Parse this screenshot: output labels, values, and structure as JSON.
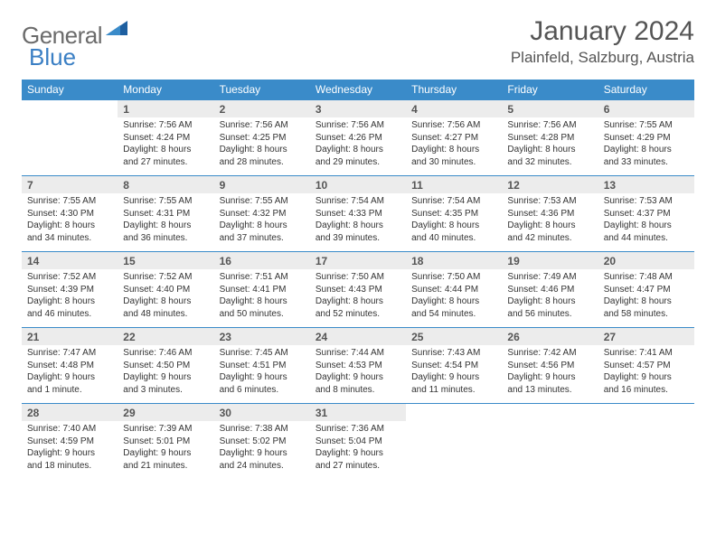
{
  "brand": {
    "general": "General",
    "blue": "Blue"
  },
  "title": "January 2024",
  "location": "Plainfeld, Salzburg, Austria",
  "colors": {
    "headerBg": "#3a8bc9",
    "dayBg": "#ececec",
    "borderTop": "#3a8bc9",
    "logoGray": "#6b6b6b",
    "logoBlue": "#3a7fc4"
  },
  "dows": [
    "Sunday",
    "Monday",
    "Tuesday",
    "Wednesday",
    "Thursday",
    "Friday",
    "Saturday"
  ],
  "weeks": [
    [
      null,
      {
        "n": "1",
        "sr": "7:56 AM",
        "ss": "4:24 PM",
        "dl": "8 hours and 27 minutes."
      },
      {
        "n": "2",
        "sr": "7:56 AM",
        "ss": "4:25 PM",
        "dl": "8 hours and 28 minutes."
      },
      {
        "n": "3",
        "sr": "7:56 AM",
        "ss": "4:26 PM",
        "dl": "8 hours and 29 minutes."
      },
      {
        "n": "4",
        "sr": "7:56 AM",
        "ss": "4:27 PM",
        "dl": "8 hours and 30 minutes."
      },
      {
        "n": "5",
        "sr": "7:56 AM",
        "ss": "4:28 PM",
        "dl": "8 hours and 32 minutes."
      },
      {
        "n": "6",
        "sr": "7:55 AM",
        "ss": "4:29 PM",
        "dl": "8 hours and 33 minutes."
      }
    ],
    [
      {
        "n": "7",
        "sr": "7:55 AM",
        "ss": "4:30 PM",
        "dl": "8 hours and 34 minutes."
      },
      {
        "n": "8",
        "sr": "7:55 AM",
        "ss": "4:31 PM",
        "dl": "8 hours and 36 minutes."
      },
      {
        "n": "9",
        "sr": "7:55 AM",
        "ss": "4:32 PM",
        "dl": "8 hours and 37 minutes."
      },
      {
        "n": "10",
        "sr": "7:54 AM",
        "ss": "4:33 PM",
        "dl": "8 hours and 39 minutes."
      },
      {
        "n": "11",
        "sr": "7:54 AM",
        "ss": "4:35 PM",
        "dl": "8 hours and 40 minutes."
      },
      {
        "n": "12",
        "sr": "7:53 AM",
        "ss": "4:36 PM",
        "dl": "8 hours and 42 minutes."
      },
      {
        "n": "13",
        "sr": "7:53 AM",
        "ss": "4:37 PM",
        "dl": "8 hours and 44 minutes."
      }
    ],
    [
      {
        "n": "14",
        "sr": "7:52 AM",
        "ss": "4:39 PM",
        "dl": "8 hours and 46 minutes."
      },
      {
        "n": "15",
        "sr": "7:52 AM",
        "ss": "4:40 PM",
        "dl": "8 hours and 48 minutes."
      },
      {
        "n": "16",
        "sr": "7:51 AM",
        "ss": "4:41 PM",
        "dl": "8 hours and 50 minutes."
      },
      {
        "n": "17",
        "sr": "7:50 AM",
        "ss": "4:43 PM",
        "dl": "8 hours and 52 minutes."
      },
      {
        "n": "18",
        "sr": "7:50 AM",
        "ss": "4:44 PM",
        "dl": "8 hours and 54 minutes."
      },
      {
        "n": "19",
        "sr": "7:49 AM",
        "ss": "4:46 PM",
        "dl": "8 hours and 56 minutes."
      },
      {
        "n": "20",
        "sr": "7:48 AM",
        "ss": "4:47 PM",
        "dl": "8 hours and 58 minutes."
      }
    ],
    [
      {
        "n": "21",
        "sr": "7:47 AM",
        "ss": "4:48 PM",
        "dl": "9 hours and 1 minute."
      },
      {
        "n": "22",
        "sr": "7:46 AM",
        "ss": "4:50 PM",
        "dl": "9 hours and 3 minutes."
      },
      {
        "n": "23",
        "sr": "7:45 AM",
        "ss": "4:51 PM",
        "dl": "9 hours and 6 minutes."
      },
      {
        "n": "24",
        "sr": "7:44 AM",
        "ss": "4:53 PM",
        "dl": "9 hours and 8 minutes."
      },
      {
        "n": "25",
        "sr": "7:43 AM",
        "ss": "4:54 PM",
        "dl": "9 hours and 11 minutes."
      },
      {
        "n": "26",
        "sr": "7:42 AM",
        "ss": "4:56 PM",
        "dl": "9 hours and 13 minutes."
      },
      {
        "n": "27",
        "sr": "7:41 AM",
        "ss": "4:57 PM",
        "dl": "9 hours and 16 minutes."
      }
    ],
    [
      {
        "n": "28",
        "sr": "7:40 AM",
        "ss": "4:59 PM",
        "dl": "9 hours and 18 minutes."
      },
      {
        "n": "29",
        "sr": "7:39 AM",
        "ss": "5:01 PM",
        "dl": "9 hours and 21 minutes."
      },
      {
        "n": "30",
        "sr": "7:38 AM",
        "ss": "5:02 PM",
        "dl": "9 hours and 24 minutes."
      },
      {
        "n": "31",
        "sr": "7:36 AM",
        "ss": "5:04 PM",
        "dl": "9 hours and 27 minutes."
      },
      null,
      null,
      null
    ]
  ],
  "labels": {
    "sunrise": "Sunrise: ",
    "sunset": "Sunset: ",
    "daylight": "Daylight: "
  }
}
